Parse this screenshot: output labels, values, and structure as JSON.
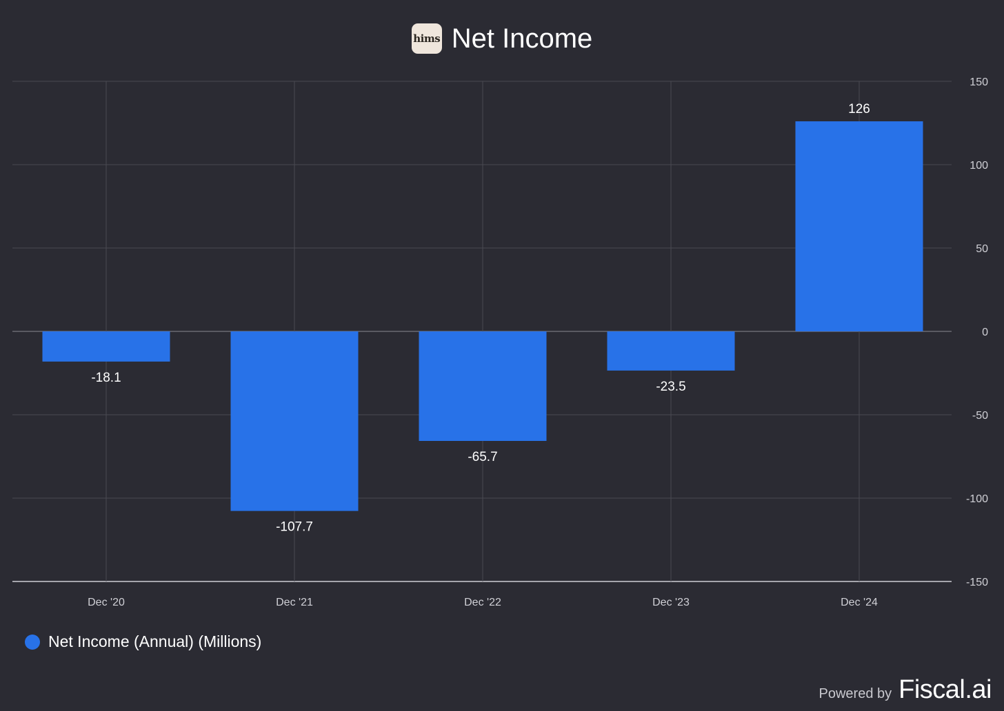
{
  "header": {
    "logo_text": "hims",
    "title": "Net Income"
  },
  "colors": {
    "background": "#2b2b33",
    "bar": "#2872e8",
    "grid": "#4a4a52",
    "axis": "#d0d0d6"
  },
  "chart_data": {
    "type": "bar",
    "title": "Net Income",
    "categories": [
      "Dec '20",
      "Dec '21",
      "Dec '22",
      "Dec '23",
      "Dec '24"
    ],
    "series": [
      {
        "name": "Net Income (Annual) (Millions)",
        "values": [
          -18.1,
          -107.7,
          -65.7,
          -23.5,
          126
        ]
      }
    ],
    "data_labels": [
      "-18.1",
      "-107.7",
      "-65.7",
      "-23.5",
      "126"
    ],
    "y_ticks": [
      150,
      100,
      50,
      0,
      -50,
      -100,
      -150
    ],
    "ylim": [
      -150,
      150
    ],
    "y_axis_side": "right",
    "grid": true,
    "legend_position": "bottom-left"
  },
  "legend": {
    "label": "Net Income (Annual) (Millions)"
  },
  "footer": {
    "powered_by": "Powered by",
    "brand": "Fiscal.ai"
  }
}
